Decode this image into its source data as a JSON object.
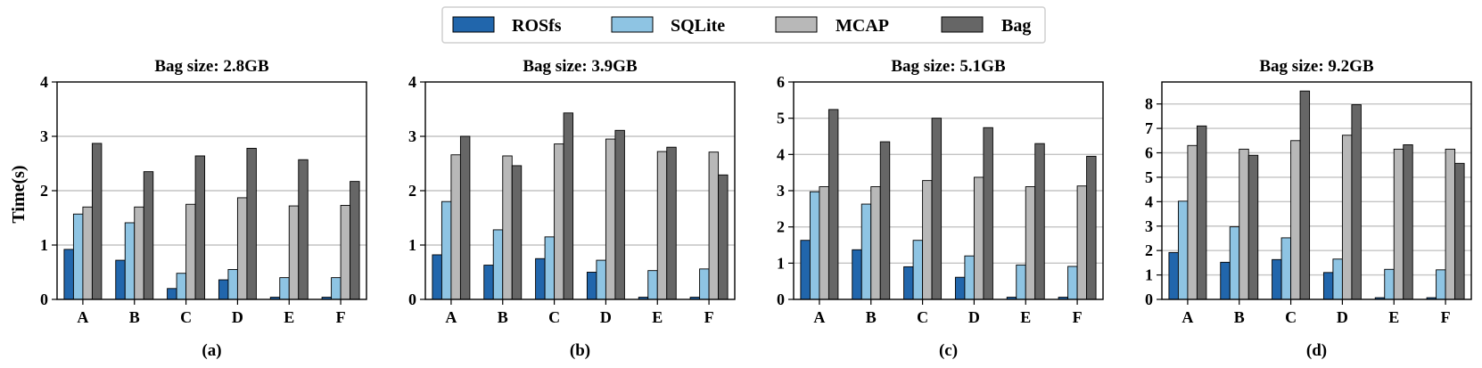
{
  "legend": {
    "entries": [
      "ROSfs",
      "SQLite",
      "MCAP",
      "Bag"
    ],
    "colors": [
      "#2166ac",
      "#8ec4e3",
      "#b8b8b8",
      "#666666"
    ]
  },
  "ylabel": "Time(s)",
  "chart_data": [
    {
      "type": "bar",
      "title": "Bag size: 2.8GB",
      "caption": "(a)",
      "categories": [
        "A",
        "B",
        "C",
        "D",
        "E",
        "F"
      ],
      "ylim": [
        0,
        4
      ],
      "yticks": [
        0,
        1,
        2,
        3,
        4
      ],
      "series": [
        {
          "name": "ROSfs",
          "values": [
            0.92,
            0.72,
            0.2,
            0.36,
            0.04,
            0.04
          ]
        },
        {
          "name": "SQLite",
          "values": [
            1.57,
            1.41,
            0.48,
            0.55,
            0.4,
            0.4
          ]
        },
        {
          "name": "MCAP",
          "values": [
            1.7,
            1.7,
            1.75,
            1.87,
            1.72,
            1.73
          ]
        },
        {
          "name": "Bag",
          "values": [
            2.87,
            2.35,
            2.64,
            2.78,
            2.57,
            2.17
          ]
        }
      ]
    },
    {
      "type": "bar",
      "title": "Bag size: 3.9GB",
      "caption": "(b)",
      "categories": [
        "A",
        "B",
        "C",
        "D",
        "E",
        "F"
      ],
      "ylim": [
        0,
        4
      ],
      "yticks": [
        0,
        1,
        2,
        3,
        4
      ],
      "series": [
        {
          "name": "ROSfs",
          "values": [
            0.82,
            0.63,
            0.75,
            0.5,
            0.04,
            0.04
          ]
        },
        {
          "name": "SQLite",
          "values": [
            1.8,
            1.28,
            1.15,
            0.72,
            0.53,
            0.56
          ]
        },
        {
          "name": "MCAP",
          "values": [
            2.66,
            2.64,
            2.86,
            2.95,
            2.72,
            2.71
          ]
        },
        {
          "name": "Bag",
          "values": [
            3.0,
            2.46,
            3.43,
            3.11,
            2.8,
            2.29
          ]
        }
      ]
    },
    {
      "type": "bar",
      "title": "Bag size: 5.1GB",
      "caption": "(c)",
      "categories": [
        "A",
        "B",
        "C",
        "D",
        "E",
        "F"
      ],
      "ylim": [
        0,
        6
      ],
      "yticks": [
        0,
        1,
        2,
        3,
        4,
        5,
        6
      ],
      "series": [
        {
          "name": "ROSfs",
          "values": [
            1.63,
            1.37,
            0.9,
            0.61,
            0.06,
            0.06
          ]
        },
        {
          "name": "SQLite",
          "values": [
            2.97,
            2.63,
            1.63,
            1.2,
            0.95,
            0.91
          ]
        },
        {
          "name": "MCAP",
          "values": [
            3.11,
            3.11,
            3.28,
            3.37,
            3.11,
            3.13
          ]
        },
        {
          "name": "Bag",
          "values": [
            5.24,
            4.35,
            5.0,
            4.74,
            4.3,
            3.95
          ]
        }
      ]
    },
    {
      "type": "bar",
      "title": "Bag size: 9.2GB",
      "caption": "(d)",
      "categories": [
        "A",
        "B",
        "C",
        "D",
        "E",
        "F"
      ],
      "ylim": [
        0,
        8.9
      ],
      "yticks": [
        0,
        1,
        2,
        3,
        4,
        5,
        6,
        7,
        8
      ],
      "series": [
        {
          "name": "ROSfs",
          "values": [
            1.92,
            1.52,
            1.63,
            1.1,
            0.07,
            0.07
          ]
        },
        {
          "name": "SQLite",
          "values": [
            4.02,
            2.97,
            2.52,
            1.65,
            1.23,
            1.21
          ]
        },
        {
          "name": "MCAP",
          "values": [
            6.3,
            6.15,
            6.5,
            6.72,
            6.15,
            6.15
          ]
        },
        {
          "name": "Bag",
          "values": [
            7.1,
            5.9,
            8.53,
            7.97,
            6.33,
            5.57
          ]
        }
      ]
    }
  ]
}
